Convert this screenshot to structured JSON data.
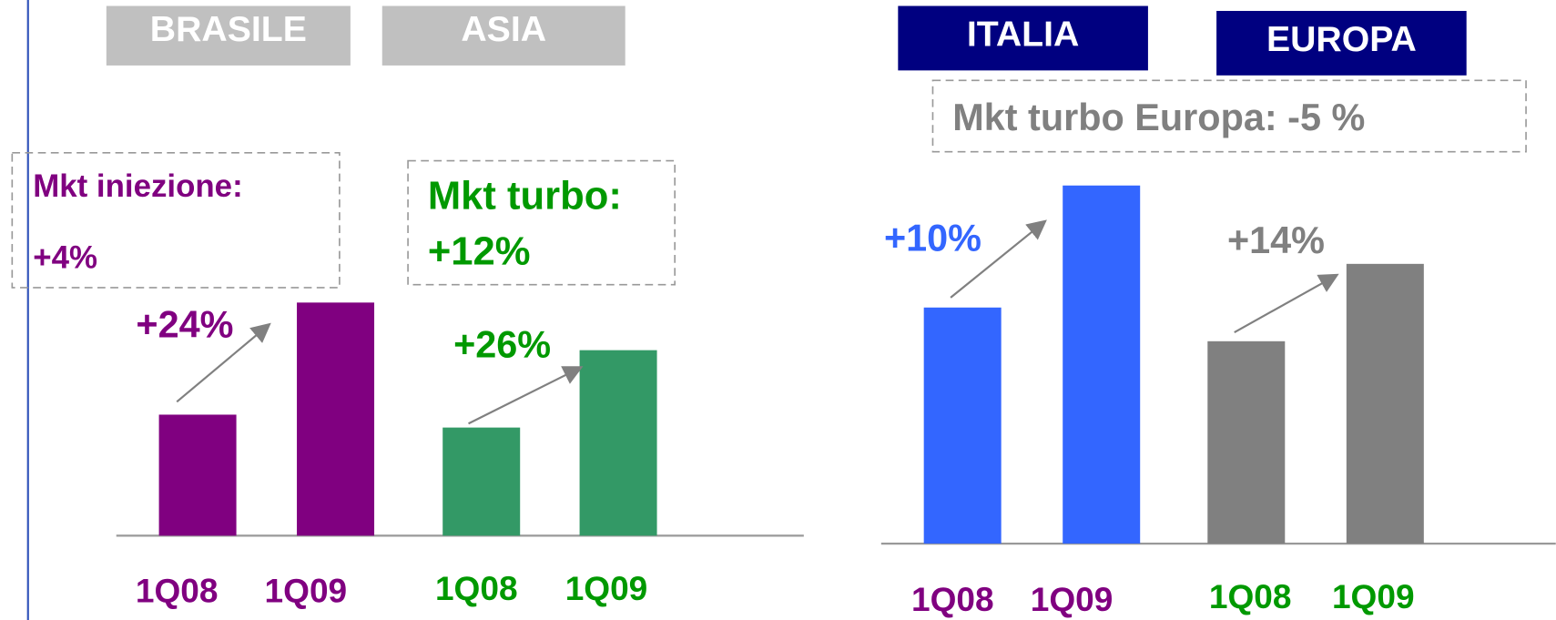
{
  "chart_data": [
    {
      "type": "bar",
      "ylim": [
        0,
        400
      ],
      "groups": [
        {
          "header": "BRASILE",
          "header_color": "#c0c0c0",
          "mkt": [
            "Mkt iniezione:",
            "+4%"
          ],
          "mkt_color": "#800080",
          "growth": "+24%",
          "growth_color": "#800080",
          "categories": [
            "1Q08",
            "1Q09"
          ],
          "label_color": "#800080",
          "values": [
            122,
            235
          ],
          "color": "#800080"
        },
        {
          "header": "ASIA",
          "header_color": "#c0c0c0",
          "mkt": [
            "Mkt turbo:",
            "+12%"
          ],
          "mkt_color": "#009900",
          "growth": "+26%",
          "growth_color": "#009900",
          "categories": [
            "1Q08",
            "1Q09"
          ],
          "label_color": "#009900",
          "values": [
            109,
            187
          ],
          "color": "#339966"
        }
      ]
    },
    {
      "type": "bar",
      "ylim": [
        0,
        400
      ],
      "groups": [
        {
          "header": "ITALIA",
          "header_color": "#000080",
          "mkt": [],
          "mkt_color": "#808080",
          "growth": "+10%",
          "growth_color": "#3366ff",
          "categories": [
            "1Q08",
            "1Q09"
          ],
          "label_color": "#800080",
          "values": [
            238,
            361
          ],
          "color": "#3366ff"
        },
        {
          "header": "EUROPA",
          "header_color": "#000080",
          "mkt": [
            "Mkt turbo Europa: -5 %"
          ],
          "mkt_color": "#808080",
          "growth": "+14%",
          "growth_color": "#808080",
          "categories": [
            "1Q08",
            "1Q09"
          ],
          "label_color": "#009900",
          "values": [
            204,
            282
          ],
          "color": "#808080"
        }
      ]
    }
  ]
}
